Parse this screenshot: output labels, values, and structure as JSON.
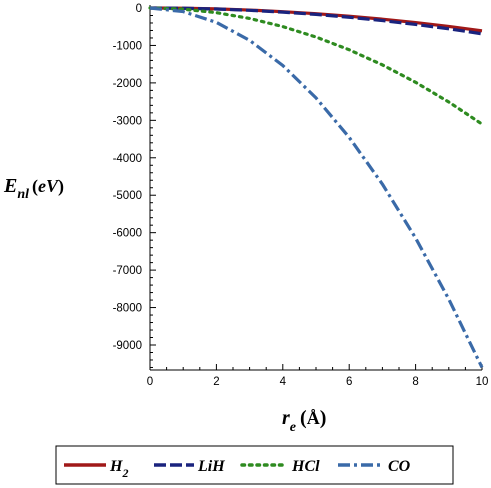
{
  "chart_data": {
    "type": "line",
    "xlabel_main": "r",
    "xlabel_sub": "e",
    "xlabel_unit": "Å",
    "ylabel_main": "E",
    "ylabel_sub": "nl",
    "ylabel_unit": "eV",
    "xlim": [
      0,
      10
    ],
    "ylim": [
      -9700,
      0
    ],
    "x_ticks": [
      0,
      2,
      4,
      6,
      8,
      10
    ],
    "y_ticks": [
      0,
      -1000,
      -2000,
      -3000,
      -4000,
      -5000,
      -6000,
      -7000,
      -8000,
      -9000
    ],
    "x_tick_labels": [
      "0",
      "2",
      "4",
      "6",
      "8",
      "10"
    ],
    "y_tick_labels": [
      "0",
      "-1000",
      "-2000",
      "-3000",
      "-4000",
      "-5000",
      "-6000",
      "-7000",
      "-8000",
      "-9000"
    ],
    "grid": false,
    "legend_position": "bottom",
    "series": [
      {
        "name": "H",
        "name_sub": "2",
        "color": "#a01818",
        "dash": "solid",
        "x": [
          0,
          1,
          2,
          3,
          4,
          5,
          6,
          7,
          8,
          9,
          10
        ],
        "y": [
          0,
          -6,
          -24,
          -55,
          -98,
          -152,
          -219,
          -298,
          -389,
          -493,
          -610
        ]
      },
      {
        "name": "LiH",
        "name_sub": "",
        "color": "#1a237e",
        "dash": "dash",
        "x": [
          0,
          1,
          2,
          3,
          4,
          5,
          6,
          7,
          8,
          9,
          10
        ],
        "y": [
          0,
          -7,
          -27,
          -62,
          -110,
          -171,
          -247,
          -336,
          -439,
          -555,
          -690
        ]
      },
      {
        "name": "HCl",
        "name_sub": "",
        "color": "#2e8b20",
        "dash": "dot",
        "x": [
          0,
          1,
          2,
          3,
          4,
          5,
          6,
          7,
          8,
          9,
          10
        ],
        "y": [
          0,
          -31,
          -124,
          -279,
          -496,
          -775,
          -1116,
          -1519,
          -1984,
          -2511,
          -3100
        ]
      },
      {
        "name": "CO",
        "name_sub": "",
        "color": "#3a6aa8",
        "dash": "dashdot",
        "x": [
          0,
          1,
          2,
          3,
          4,
          5,
          6,
          7,
          8,
          9,
          10
        ],
        "y": [
          0,
          -96,
          -384,
          -864,
          -1536,
          -2400,
          -3456,
          -4704,
          -6144,
          -7776,
          -9600
        ]
      }
    ]
  }
}
